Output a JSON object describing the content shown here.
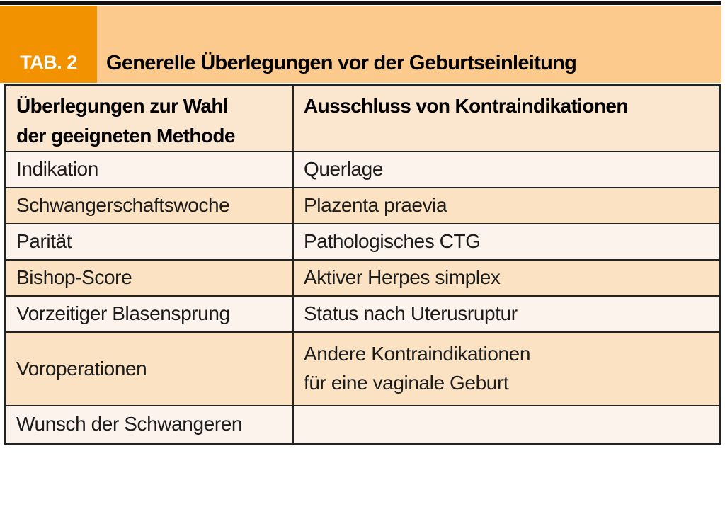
{
  "badge": {
    "label": "TAB. 2"
  },
  "header": {
    "title": "Generelle Überlegungen vor der Geburtseinleitung"
  },
  "table": {
    "columns": [
      {
        "header": "Überlegungen zur Wahl\nder geeigneten Methode"
      },
      {
        "header": "Ausschluss von Kontraindikationen"
      }
    ],
    "rows": [
      [
        "Indikation",
        "Querlage"
      ],
      [
        "Schwangerschaftswoche",
        "Plazenta praevia"
      ],
      [
        "Parität",
        "Pathologisches CTG"
      ],
      [
        "Bishop-Score",
        "Aktiver Herpes simplex"
      ],
      [
        "Vorzeitiger Blasensprung",
        "Status nach Uterusruptur"
      ],
      [
        "Voroperationen",
        "Andere Kontraindikationen\nfür eine vaginale Geburt"
      ],
      [
        "Wunsch der Schwangeren",
        ""
      ]
    ]
  },
  "colors": {
    "orange": "#f39200",
    "band": "#fcca8d",
    "header_row": "#fbe7d0",
    "row_light": "#fcf3ec",
    "row_peach": "#fae2c3",
    "border": "#232323",
    "rule": "#111111",
    "text": "#1c1c1c"
  }
}
